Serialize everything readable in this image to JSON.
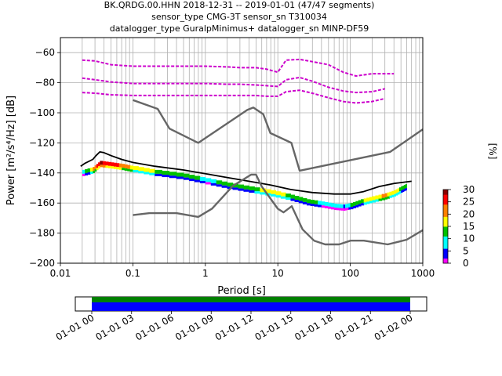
{
  "title_lines": [
    "BK.QRDG.00.HHN   2018-12-31 -- 2019-01-01  (47/47 segments)",
    "sensor_type CMG-3T sensor_sn T310034",
    "datalogger_type GuralpMinimus+ datalogger_sn MINP-DF59"
  ],
  "chart_data": [
    {
      "type": "heatmap",
      "name": "ppsd",
      "xlabel": "Period [s]",
      "ylabel": "Power [m²/s⁴/Hz] [dB]",
      "xscale": "log",
      "xlim": [
        0.01,
        1000
      ],
      "ylim": [
        -200,
        -50
      ],
      "xticks": [
        0.01,
        0.1,
        1,
        10,
        100,
        1000
      ],
      "xtick_labels": [
        "0.01",
        "0.1",
        "1",
        "10",
        "100",
        "1000"
      ],
      "yticks": [
        -200,
        -180,
        -160,
        -140,
        -120,
        -100,
        -80,
        -60
      ],
      "ytick_labels": [
        "−200",
        "−180",
        "−160",
        "−140",
        "−120",
        "−100",
        "−80",
        "−60"
      ],
      "grid": true,
      "colorbar": {
        "label": "[%]",
        "range": [
          0,
          30
        ],
        "ticks": [
          0,
          5,
          10,
          15,
          20,
          25,
          30
        ],
        "colormap": [
          "#ff00ff",
          "#0000ff",
          "#00ffff",
          "#00c000",
          "#ffff00",
          "#ff8000",
          "#ff0000",
          "#8b0000"
        ]
      },
      "series": [
        {
          "role": "mean",
          "color": "#000000",
          "x": [
            0.019,
            0.022,
            0.028,
            0.031,
            0.035,
            0.04,
            0.05,
            0.07,
            0.1,
            0.2,
            0.5,
            1,
            2,
            4,
            8,
            15,
            30,
            60,
            100,
            150,
            250,
            400,
            700
          ],
          "y": [
            -135.5,
            -133.5,
            -131,
            -128.5,
            -126,
            -126.5,
            -128.5,
            -131,
            -133,
            -135.5,
            -138,
            -140.5,
            -143,
            -145.5,
            -148,
            -151,
            -153,
            -154,
            -154,
            -152.5,
            -149,
            -147,
            -145.5
          ]
        },
        {
          "role": "nhnm",
          "color": "#666666",
          "x": [
            0.1,
            0.22,
            0.32,
            0.8,
            3.8,
            4.6,
            6.3,
            7.9,
            15.4,
            20,
            354.8,
            1000
          ],
          "y": [
            -91.5,
            -97.4,
            -110.5,
            -120,
            -98,
            -96.5,
            -101,
            -113.5,
            -120,
            -138.5,
            -126,
            -111
          ]
        },
        {
          "role": "nlnm",
          "color": "#666666",
          "x": [
            0.1,
            0.17,
            0.4,
            0.8,
            1.24,
            2.4,
            4.3,
            5,
            6,
            10,
            12,
            15.6,
            21.9,
            31.6,
            45,
            70,
            101,
            154,
            328,
            600,
            1000
          ],
          "y": [
            -168,
            -166.7,
            -166.7,
            -169.2,
            -163.7,
            -148.6,
            -141.1,
            -141.1,
            -149,
            -163.8,
            -166.2,
            -162.1,
            -177.5,
            -185,
            -187.5,
            -187.5,
            -185,
            -185,
            -187.5,
            -184.4,
            -178
          ]
        },
        {
          "role": "density-upper",
          "color": "#cc00cc",
          "x": [
            0.02,
            0.03,
            0.05,
            0.1,
            0.3,
            1,
            2,
            3,
            5,
            7,
            10,
            13,
            20,
            30,
            50,
            80,
            120,
            200,
            400
          ],
          "y": [
            -65,
            -65.5,
            -68,
            -69,
            -69,
            -69,
            -69.5,
            -70,
            -70,
            -71,
            -73,
            -65,
            -64.5,
            -66,
            -68,
            -73,
            -75.5,
            -74,
            -74
          ]
        },
        {
          "role": "density-middle",
          "color": "#cc00cc",
          "x": [
            0.02,
            0.03,
            0.05,
            0.1,
            0.3,
            1,
            2,
            3,
            5,
            7,
            10,
            13,
            20,
            30,
            50,
            80,
            120,
            200,
            300
          ],
          "y": [
            -77,
            -78,
            -79.5,
            -80.5,
            -80.5,
            -80.5,
            -81,
            -81,
            -81.5,
            -82,
            -82.5,
            -78,
            -76.5,
            -79,
            -83,
            -85.5,
            -86.5,
            -86,
            -84
          ]
        },
        {
          "role": "density-lower",
          "color": "#cc00cc",
          "x": [
            0.02,
            0.03,
            0.05,
            0.1,
            0.3,
            1,
            2,
            3,
            5,
            7,
            10,
            13,
            20,
            30,
            50,
            80,
            120,
            200,
            300
          ],
          "y": [
            -86.5,
            -87,
            -88,
            -88.5,
            -88.5,
            -88.5,
            -88.5,
            -88.5,
            -88.5,
            -89,
            -89,
            -86,
            -85,
            -87,
            -90,
            -92.5,
            -93.5,
            -92.5,
            -90.5
          ]
        },
        {
          "role": "density-band",
          "x": [
            0.02,
            0.028,
            0.035,
            0.05,
            0.07,
            0.1,
            0.2,
            0.5,
            1,
            2,
            4,
            8,
            15,
            25,
            40,
            60,
            80,
            100,
            140,
            200,
            300,
            400,
            500,
            600
          ],
          "y": [
            -139,
            -137,
            -133,
            -134,
            -135,
            -136.5,
            -139,
            -141.5,
            -144.5,
            -147.5,
            -150,
            -152.5,
            -155.5,
            -158.5,
            -160,
            -161.5,
            -162,
            -161,
            -158.5,
            -156.5,
            -154.5,
            -152.5,
            -150,
            -148
          ],
          "pct": [
            8,
            20,
            28,
            26,
            22,
            18,
            14,
            12,
            10,
            12,
            14,
            16,
            14,
            12,
            10,
            8,
            6,
            12,
            14,
            18,
            20,
            16,
            14,
            12
          ]
        }
      ]
    },
    {
      "type": "timeline",
      "name": "data-coverage",
      "xticks": [
        "01-01 00",
        "01-01 03",
        "01-01 06",
        "01-01 09",
        "01-01 12",
        "01-01 15",
        "01-01 18",
        "01-01 21",
        "01-02 00"
      ],
      "coverage_start": "01-01 00",
      "coverage_end": "01-02 00",
      "bars": [
        {
          "role": "available",
          "color": "#008000"
        },
        {
          "role": "used",
          "color": "#0000ff"
        }
      ]
    }
  ]
}
